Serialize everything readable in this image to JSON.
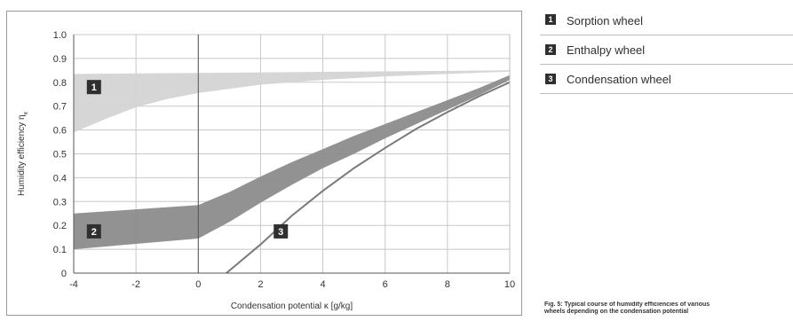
{
  "chart_data": {
    "type": "line",
    "xlabel": "Condensation potential κ [g/kg]",
    "ylabel": "Humidity efficiency η",
    "ylabel_subscript": "x",
    "xlim": [
      -4,
      10
    ],
    "ylim": [
      0,
      1.0
    ],
    "x_ticks": [
      "-4",
      "-2",
      "0",
      "2",
      "4",
      "6",
      "8",
      "10"
    ],
    "y_ticks": [
      "0",
      "0.1",
      "0.2",
      "0.3",
      "0.4",
      "0.5",
      "0.6",
      "0.7",
      "0.8",
      "0.9",
      "1.0"
    ],
    "grid": true,
    "vertical_reference_x": 0,
    "series": [
      {
        "name": "Sorption wheel",
        "badge": "1",
        "kind": "band",
        "upper": [
          [
            -4,
            0.835
          ],
          [
            10,
            0.85
          ]
        ],
        "lower": [
          [
            -4,
            0.59
          ],
          [
            -3,
            0.645
          ],
          [
            -2,
            0.695
          ],
          [
            -1,
            0.73
          ],
          [
            0,
            0.755
          ],
          [
            2,
            0.79
          ],
          [
            4,
            0.81
          ],
          [
            6,
            0.825
          ],
          [
            8,
            0.835
          ],
          [
            10,
            0.845
          ]
        ],
        "color": "#d4d4d4"
      },
      {
        "name": "Enthalpy wheel",
        "badge": "2",
        "kind": "band",
        "upper": [
          [
            -4,
            0.25
          ],
          [
            0,
            0.285
          ],
          [
            1,
            0.34
          ],
          [
            2,
            0.405
          ],
          [
            3,
            0.465
          ],
          [
            4,
            0.52
          ],
          [
            5,
            0.575
          ],
          [
            6,
            0.625
          ],
          [
            7,
            0.675
          ],
          [
            8,
            0.725
          ],
          [
            9,
            0.775
          ],
          [
            10,
            0.83
          ]
        ],
        "lower": [
          [
            -4,
            0.1
          ],
          [
            0,
            0.145
          ],
          [
            1,
            0.215
          ],
          [
            2,
            0.295
          ],
          [
            3,
            0.37
          ],
          [
            4,
            0.44
          ],
          [
            5,
            0.5
          ],
          [
            6,
            0.565
          ],
          [
            7,
            0.625
          ],
          [
            8,
            0.685
          ],
          [
            9,
            0.745
          ],
          [
            10,
            0.81
          ]
        ],
        "color": "#8c8c8c"
      },
      {
        "name": "Condensation wheel",
        "badge": "3",
        "kind": "line",
        "points": [
          [
            0.9,
            0.0
          ],
          [
            2,
            0.12
          ],
          [
            3,
            0.24
          ],
          [
            4,
            0.345
          ],
          [
            5,
            0.44
          ],
          [
            6,
            0.525
          ],
          [
            7,
            0.605
          ],
          [
            8,
            0.675
          ],
          [
            9,
            0.74
          ],
          [
            10,
            0.8
          ]
        ],
        "color": "#7a7a7a"
      }
    ],
    "badges": [
      {
        "label": "1",
        "x": -3.35,
        "y": 0.78
      },
      {
        "label": "2",
        "x": -3.35,
        "y": 0.175
      },
      {
        "label": "3",
        "x": 2.65,
        "y": 0.175
      }
    ]
  },
  "legend": [
    {
      "badge": "1",
      "label": "Sorption wheel"
    },
    {
      "badge": "2",
      "label": "Enthalpy wheel"
    },
    {
      "badge": "3",
      "label": "Condensation wheel"
    }
  ],
  "caption": {
    "title": "Fig. 5: Typical course of humidity efficiencies of various",
    "line2": "wheels depending on the condensation potential"
  }
}
